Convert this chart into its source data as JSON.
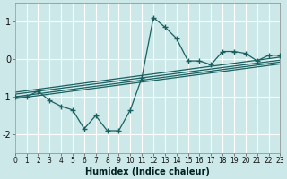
{
  "xlabel": "Humidex (Indice chaleur)",
  "bg_color": "#cce8e8",
  "grid_color": "#b8d8d8",
  "line_color": "#1a6060",
  "xlim": [
    0,
    23
  ],
  "ylim": [
    -2.5,
    1.5
  ],
  "xticks": [
    0,
    1,
    2,
    3,
    4,
    5,
    6,
    7,
    8,
    9,
    10,
    11,
    12,
    13,
    14,
    15,
    16,
    17,
    18,
    19,
    20,
    21,
    22,
    23
  ],
  "yticks": [
    -2,
    -1,
    0,
    1
  ],
  "data_x": [
    0,
    1,
    2,
    3,
    4,
    5,
    6,
    7,
    8,
    9,
    10,
    11,
    12,
    13,
    14,
    15,
    16,
    17,
    18,
    19,
    20,
    21,
    22,
    23
  ],
  "data_y": [
    -1.0,
    -1.0,
    -0.85,
    -1.1,
    -1.25,
    -1.35,
    -1.85,
    -1.5,
    -1.9,
    -1.9,
    -1.35,
    -0.5,
    1.1,
    0.85,
    0.55,
    -0.05,
    -0.05,
    -0.15,
    0.2,
    0.2,
    0.15,
    -0.05,
    0.1,
    0.1
  ],
  "reg_lines": [
    {
      "x0": 0,
      "y0": -1.0,
      "x1": 23,
      "y1": -0.08
    },
    {
      "x0": 0,
      "y0": -1.05,
      "x1": 23,
      "y1": -0.13
    },
    {
      "x0": 0,
      "y0": -0.93,
      "x1": 23,
      "y1": -0.03
    },
    {
      "x0": 0,
      "y0": -0.88,
      "x1": 23,
      "y1": 0.05
    }
  ]
}
